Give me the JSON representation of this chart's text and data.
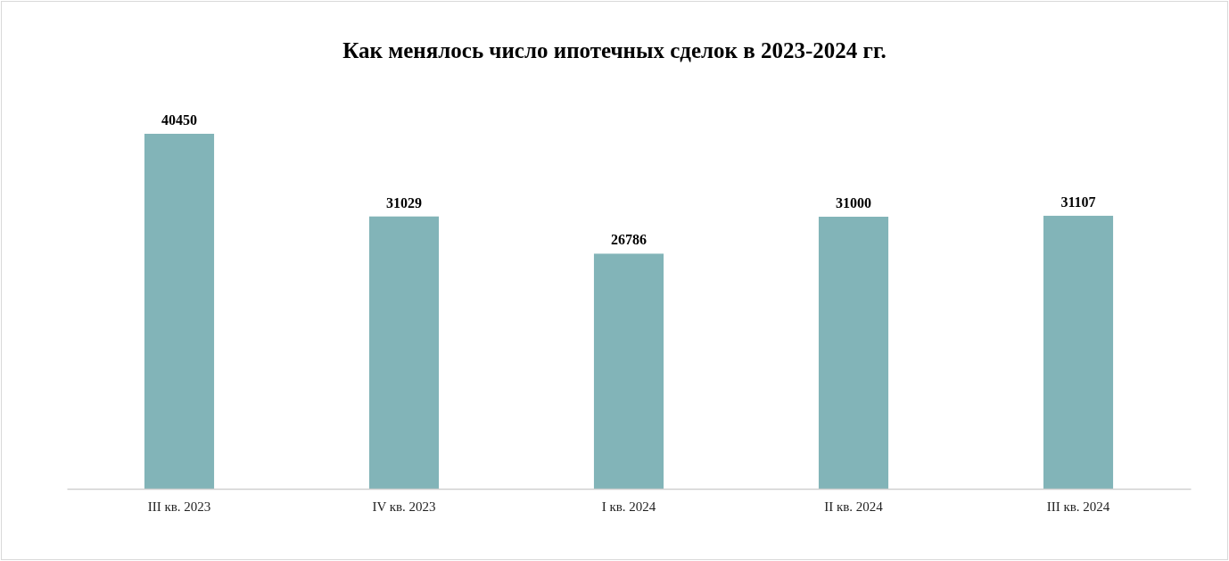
{
  "chart_data": {
    "type": "bar",
    "title": "Как менялось число ипотечных сделок в 2023-2024 гг.",
    "categories": [
      "III кв. 2023",
      "IV кв. 2023",
      "I кв. 2024",
      "II кв. 2024",
      "III кв. 2024"
    ],
    "values": [
      40450,
      31029,
      26786,
      31000,
      31107
    ],
    "color": "#82b4b8",
    "data_labels": true
  }
}
